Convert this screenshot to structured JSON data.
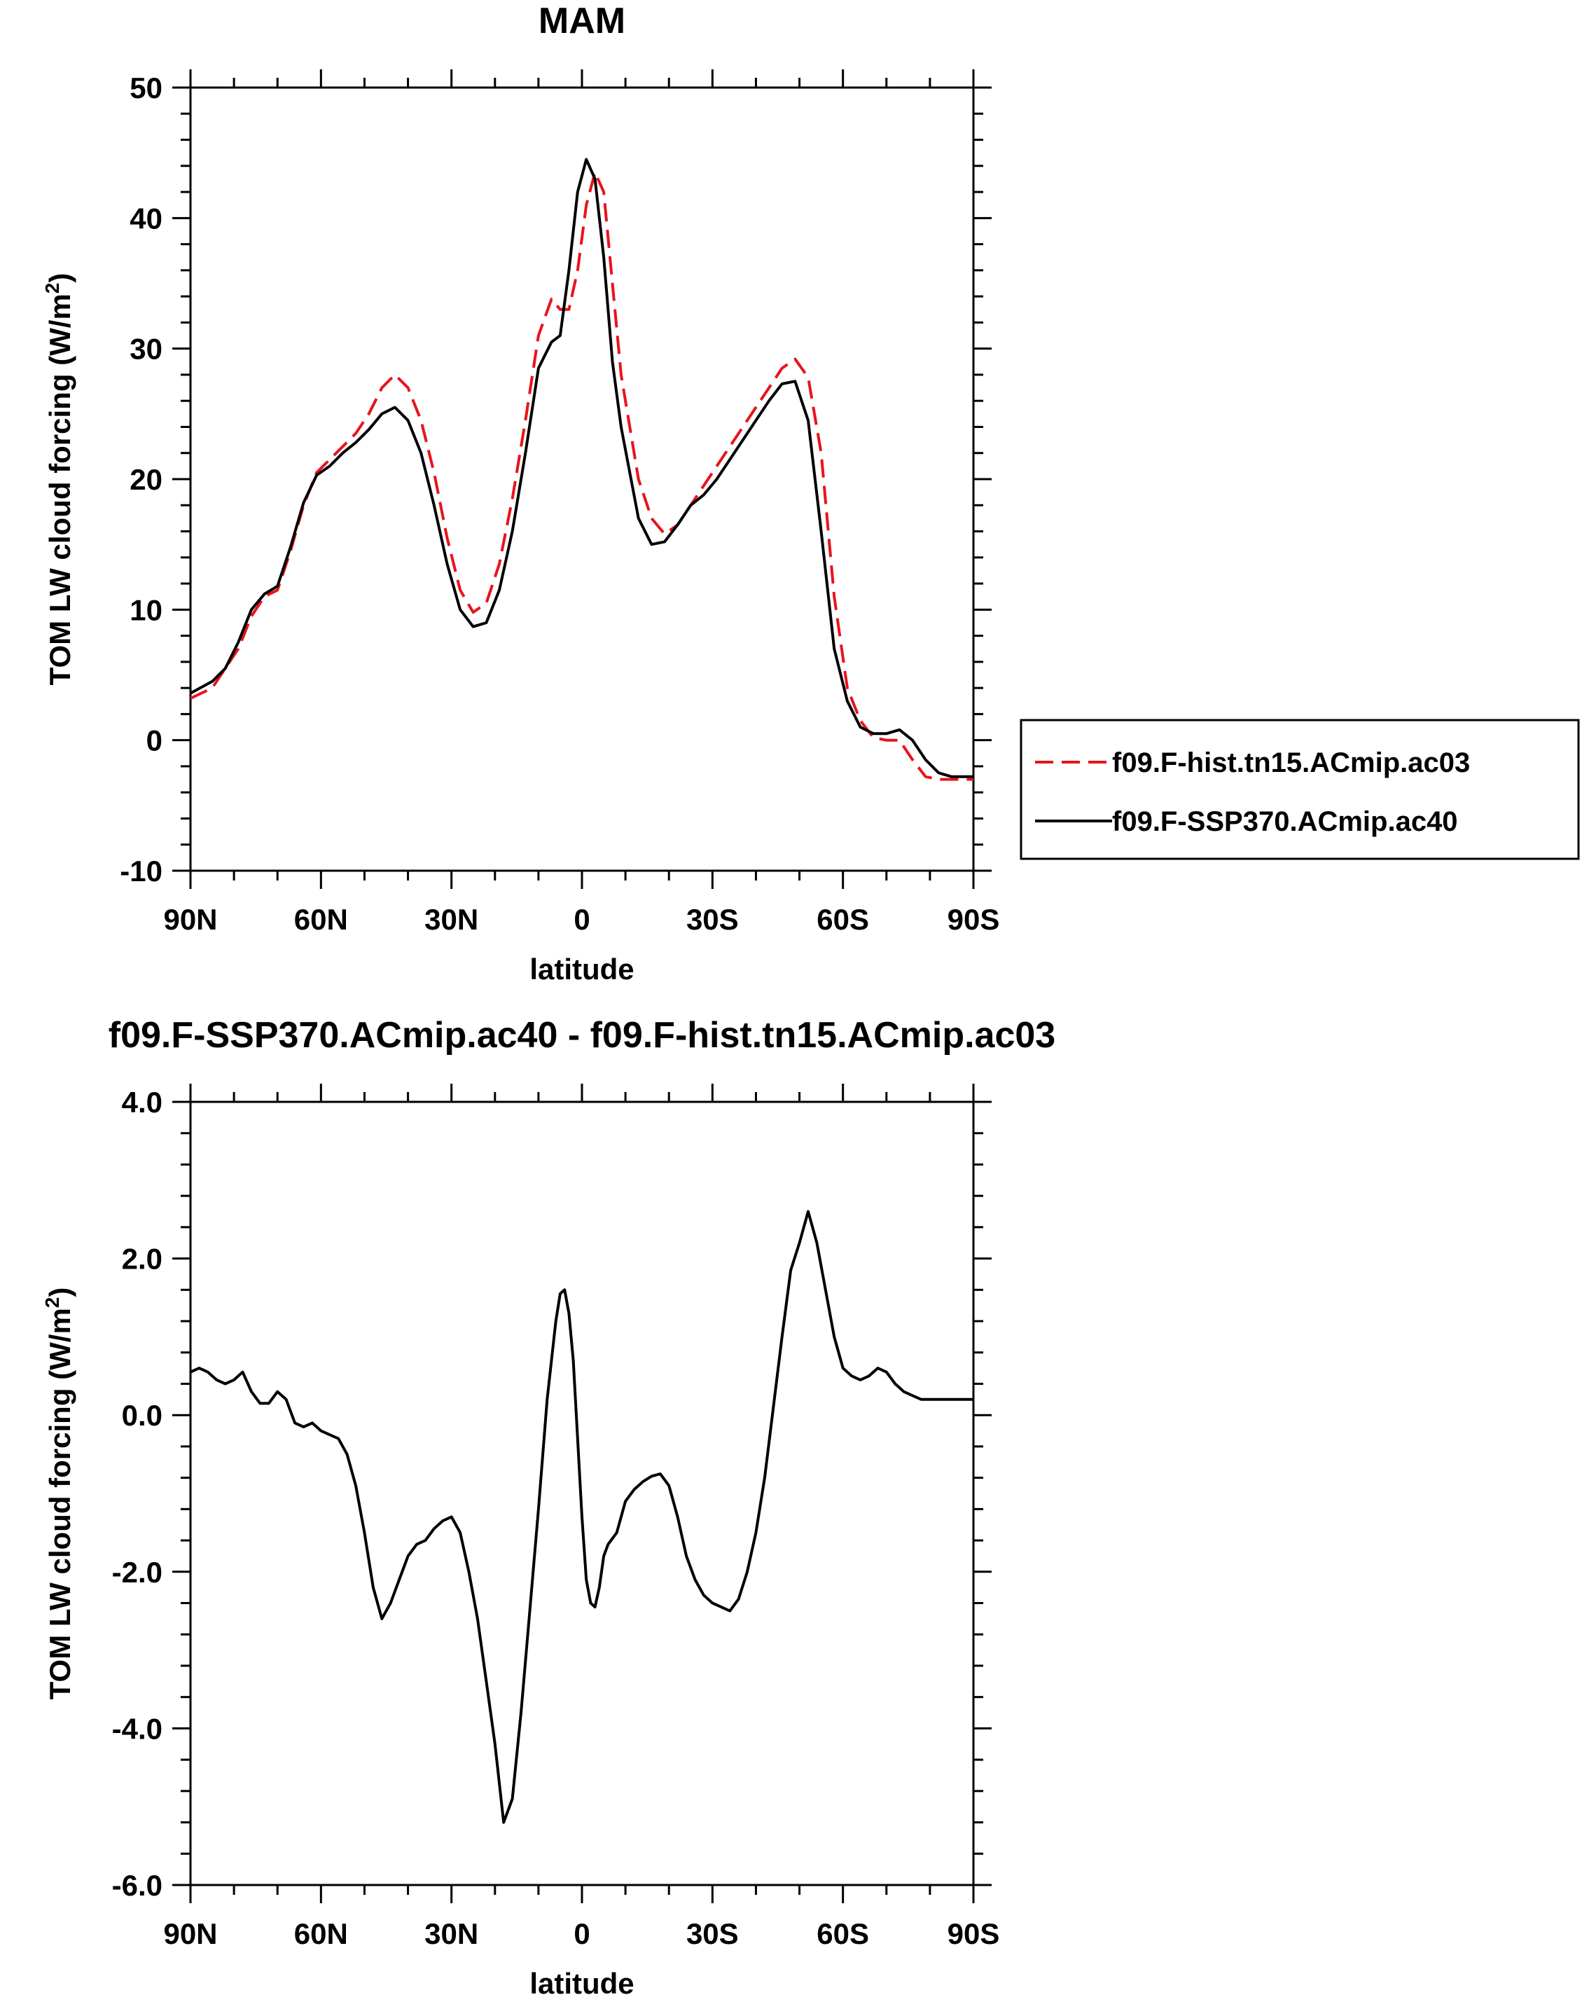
{
  "chart_data": [
    {
      "type": "line",
      "title": "MAM",
      "xlabel": "latitude",
      "ylabel": "TOM LW cloud forcing (W/m",
      "ylabel_sup": "2",
      "ylabel_tail": ")",
      "xlim": [
        -90,
        90
      ],
      "ylim": [
        -10,
        50
      ],
      "xticks": [
        -90,
        -60,
        -30,
        0,
        30,
        60,
        90
      ],
      "xticklabels": [
        "90N",
        "60N",
        "30N",
        "0",
        "30S",
        "60S",
        "90S"
      ],
      "yticks": [
        -10,
        0,
        10,
        20,
        30,
        40,
        50
      ],
      "yticklabels": [
        "-10",
        "0",
        "10",
        "20",
        "30",
        "40",
        "50"
      ],
      "legend_position": "right",
      "series": [
        {
          "name": "f09.F-hist.tn15.ACmip.ac03",
          "color": "#e8141c",
          "dash": "dashed",
          "x": [
            -90,
            -85,
            -82,
            -79,
            -76,
            -73,
            -70,
            -67,
            -64,
            -61,
            -58,
            -55,
            -52,
            -49,
            -46,
            -43,
            -40,
            -37,
            -34,
            -31,
            -28,
            -25,
            -22,
            -19,
            -16,
            -13,
            -10,
            -7,
            -5,
            -3,
            -1,
            1,
            3,
            5,
            7,
            9,
            11,
            13,
            16,
            19,
            22,
            25,
            28,
            31,
            34,
            37,
            40,
            43,
            46,
            49,
            52,
            55,
            58,
            61,
            64,
            67,
            70,
            73,
            76,
            79,
            82,
            85,
            88,
            90
          ],
          "y": [
            3.2,
            4,
            5.5,
            7,
            9.5,
            11,
            11.5,
            14.5,
            18,
            20.5,
            21.5,
            22.5,
            23.5,
            25,
            27,
            28,
            27,
            24.5,
            20.5,
            15.5,
            11.5,
            9.8,
            10.5,
            13.5,
            18.5,
            24.5,
            31,
            33.8,
            33,
            33,
            36,
            41,
            43.5,
            42,
            35,
            28,
            24,
            20,
            17,
            15.8,
            16.5,
            18,
            19.5,
            21,
            22.5,
            24,
            25.5,
            27,
            28.5,
            29.2,
            27.8,
            22,
            11,
            4,
            1.5,
            0.2,
            0,
            0,
            -1.5,
            -2.8,
            -3,
            -3,
            -3,
            -3
          ]
        },
        {
          "name": "f09.F-SSP370.ACmip.ac40",
          "color": "#000000",
          "dash": "solid",
          "x": [
            -90,
            -85,
            -82,
            -79,
            -76,
            -73,
            -70,
            -67,
            -64,
            -61,
            -58,
            -55,
            -52,
            -49,
            -46,
            -43,
            -40,
            -37,
            -34,
            -31,
            -28,
            -25,
            -22,
            -19,
            -16,
            -13,
            -10,
            -7,
            -5,
            -3,
            -1,
            1,
            3,
            5,
            7,
            9,
            11,
            13,
            16,
            19,
            22,
            25,
            28,
            31,
            34,
            37,
            40,
            43,
            46,
            49,
            52,
            55,
            58,
            61,
            64,
            67,
            70,
            73,
            76,
            79,
            82,
            85,
            88,
            90
          ],
          "y": [
            3.6,
            4.5,
            5.5,
            7.5,
            10,
            11.2,
            11.8,
            14.8,
            18.2,
            20.3,
            21,
            22,
            22.8,
            23.8,
            25,
            25.5,
            24.5,
            22,
            18,
            13.5,
            10,
            8.7,
            9,
            11.5,
            16,
            22,
            28.5,
            30.5,
            31,
            36,
            42,
            44.5,
            43,
            37,
            29,
            24,
            20.5,
            17,
            15,
            15.2,
            16.5,
            18,
            18.8,
            20,
            21.5,
            23,
            24.5,
            26,
            27.3,
            27.5,
            24.5,
            16,
            7,
            3,
            1,
            0.5,
            0.5,
            0.8,
            0,
            -1.5,
            -2.5,
            -2.8,
            -2.8,
            -2.8
          ]
        }
      ]
    },
    {
      "type": "line",
      "title": "f09.F-SSP370.ACmip.ac40 - f09.F-hist.tn15.ACmip.ac03",
      "xlabel": "latitude",
      "ylabel": "TOM LW cloud forcing (W/m",
      "ylabel_sup": "2",
      "ylabel_tail": ")",
      "xlim": [
        -90,
        90
      ],
      "ylim": [
        -6,
        4
      ],
      "xticks": [
        -90,
        -60,
        -30,
        0,
        30,
        60,
        90
      ],
      "xticklabels": [
        "90N",
        "60N",
        "30N",
        "0",
        "30S",
        "60S",
        "90S"
      ],
      "yticks": [
        -6,
        -4,
        -2,
        0,
        2,
        4
      ],
      "yticklabels": [
        "-6.0",
        "-4.0",
        "-2.0",
        "0.0",
        "2.0",
        "4.0"
      ],
      "series": [
        {
          "color": "#000000",
          "dash": "solid",
          "x": [
            -90,
            -88,
            -86,
            -84,
            -82,
            -80,
            -78,
            -76,
            -74,
            -72,
            -70,
            -68,
            -66,
            -64,
            -62,
            -60,
            -58,
            -56,
            -54,
            -52,
            -50,
            -48,
            -46,
            -44,
            -42,
            -40,
            -38,
            -36,
            -34,
            -32,
            -30,
            -28,
            -26,
            -24,
            -22,
            -20,
            -18,
            -16,
            -14,
            -12,
            -10,
            -8,
            -6,
            -5,
            -4,
            -3,
            -2,
            -1,
            0,
            1,
            2,
            3,
            4,
            5,
            6,
            8,
            10,
            12,
            14,
            16,
            18,
            20,
            22,
            24,
            26,
            28,
            30,
            32,
            34,
            36,
            38,
            40,
            42,
            44,
            46,
            48,
            50,
            52,
            54,
            56,
            58,
            60,
            62,
            64,
            66,
            68,
            70,
            72,
            74,
            76,
            78,
            80,
            82,
            84,
            86,
            88,
            90
          ],
          "y": [
            0.55,
            0.6,
            0.55,
            0.45,
            0.4,
            0.45,
            0.55,
            0.3,
            0.15,
            0.15,
            0.3,
            0.2,
            -0.1,
            -0.15,
            -0.1,
            -0.2,
            -0.25,
            -0.3,
            -0.5,
            -0.9,
            -1.5,
            -2.2,
            -2.6,
            -2.4,
            -2.1,
            -1.8,
            -1.65,
            -1.6,
            -1.45,
            -1.35,
            -1.3,
            -1.5,
            -2.0,
            -2.6,
            -3.4,
            -4.2,
            -5.2,
            -4.9,
            -3.8,
            -2.5,
            -1.2,
            0.2,
            1.2,
            1.55,
            1.6,
            1.3,
            0.7,
            -0.3,
            -1.3,
            -2.1,
            -2.4,
            -2.45,
            -2.2,
            -1.8,
            -1.65,
            -1.5,
            -1.1,
            -0.95,
            -0.85,
            -0.78,
            -0.75,
            -0.9,
            -1.3,
            -1.8,
            -2.1,
            -2.3,
            -2.4,
            -2.45,
            -2.5,
            -2.35,
            -2.0,
            -1.5,
            -0.8,
            0.1,
            1.0,
            1.85,
            2.2,
            2.6,
            2.2,
            1.6,
            1.0,
            0.6,
            0.5,
            0.45,
            0.5,
            0.6,
            0.55,
            0.4,
            0.3,
            0.25,
            0.2,
            0.2,
            0.2,
            0.2,
            0.2,
            0.2,
            0.2
          ]
        }
      ]
    }
  ]
}
